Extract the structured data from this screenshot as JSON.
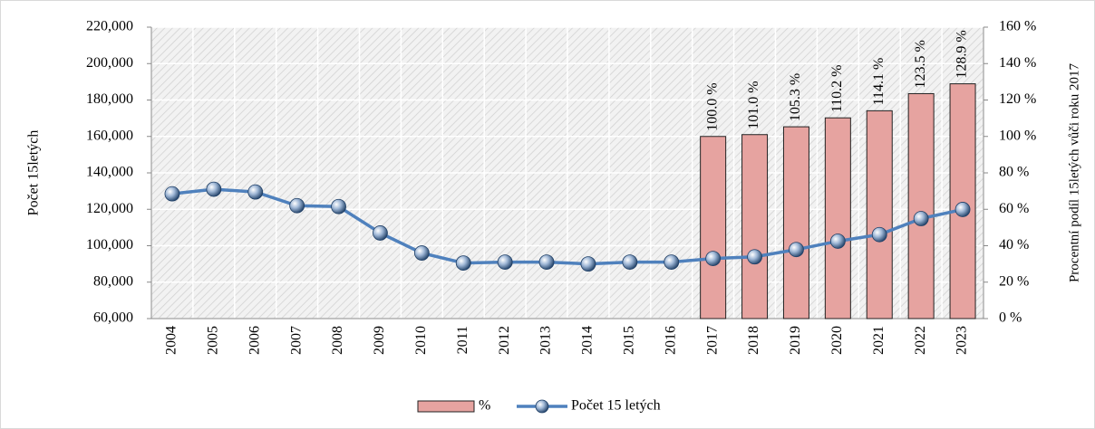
{
  "chart_data": {
    "type": "bar+line",
    "categories": [
      "2004",
      "2005",
      "2006",
      "2007",
      "2008",
      "2009",
      "2010",
      "2011",
      "2012",
      "2013",
      "2014",
      "2015",
      "2016",
      "2017",
      "2018",
      "2019",
      "2020",
      "2021",
      "2022",
      "2023"
    ],
    "series": [
      {
        "name": "%",
        "type": "bar",
        "axis": "y2",
        "color": "#e6a3a0",
        "values": [
          null,
          null,
          null,
          null,
          null,
          null,
          null,
          null,
          null,
          null,
          null,
          null,
          null,
          100.0,
          101.0,
          105.3,
          110.2,
          114.1,
          123.5,
          128.9
        ],
        "value_labels": [
          null,
          null,
          null,
          null,
          null,
          null,
          null,
          null,
          null,
          null,
          null,
          null,
          null,
          "100.0 %",
          "101.0 %",
          "105.3 %",
          "110.2 %",
          "114.1 %",
          "123.5 %",
          "128.9 %"
        ]
      },
      {
        "name": "Počet 15 letých",
        "type": "line",
        "color": "#4f81bd",
        "values": [
          128500,
          131000,
          129500,
          122000,
          121500,
          107000,
          96000,
          90500,
          91000,
          91000,
          90000,
          91000,
          91000,
          93000,
          93900,
          97900,
          102500,
          106100,
          114900,
          119900
        ]
      }
    ],
    "y_label": "Počet 15letých",
    "y2_label": "Procentní podíl 15letých vůči roku 2017",
    "ylim": [
      60000,
      220000
    ],
    "yticks": [
      {
        "value": 60000,
        "label": "60,000"
      },
      {
        "value": 80000,
        "label": "80,000"
      },
      {
        "value": 100000,
        "label": "100,000"
      },
      {
        "value": 120000,
        "label": "120,000"
      },
      {
        "value": 140000,
        "label": "140,000"
      },
      {
        "value": 160000,
        "label": "160,000"
      },
      {
        "value": 180000,
        "label": "180,000"
      },
      {
        "value": 200000,
        "label": "200,000"
      },
      {
        "value": 220000,
        "label": "220,000"
      }
    ],
    "y2lim": [
      0,
      160
    ],
    "y2ticks": [
      {
        "value": 0,
        "label": "0 %"
      },
      {
        "value": 20,
        "label": "20 %"
      },
      {
        "value": 40,
        "label": "40 %"
      },
      {
        "value": 60,
        "label": "60 %"
      },
      {
        "value": 80,
        "label": "80 %"
      },
      {
        "value": 100,
        "label": "100 %"
      },
      {
        "value": 120,
        "label": "120 %"
      },
      {
        "value": 140,
        "label": "140 %"
      },
      {
        "value": 160,
        "label": "160 %"
      }
    ],
    "grid": true,
    "legend": "bottom"
  }
}
